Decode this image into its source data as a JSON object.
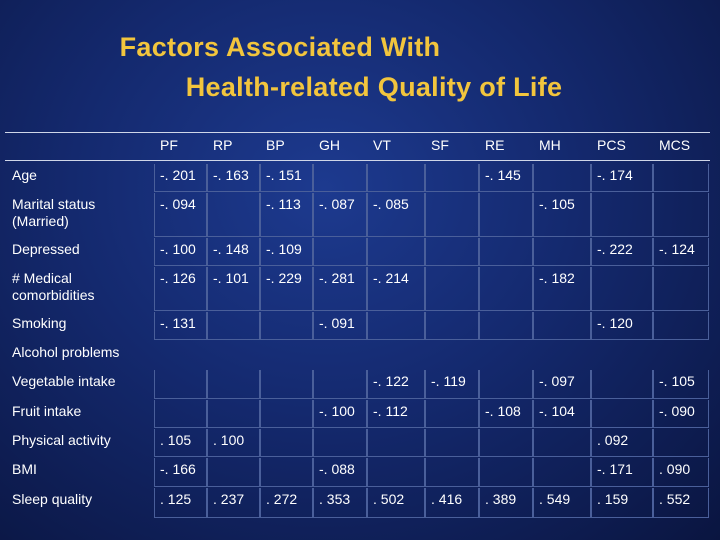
{
  "title": {
    "line1": "Factors Associated With",
    "line2": "Health-related Quality of Life"
  },
  "headers": [
    "PF",
    "RP",
    "BP",
    "GH",
    "VT",
    "SF",
    "RE",
    "MH",
    "PCS",
    "MCS"
  ],
  "rows": [
    {
      "label": "Age",
      "cells": [
        "-. 201",
        "-. 163",
        "-. 151",
        "",
        "",
        "",
        "-. 145",
        "",
        "-. 174",
        ""
      ]
    },
    {
      "label": "Marital status\n(Married)",
      "cells": [
        "-. 094",
        "",
        "-. 113",
        "-. 087",
        "-. 085",
        "",
        "",
        "-. 105",
        "",
        ""
      ]
    },
    {
      "label": "Depressed",
      "cells": [
        "-. 100",
        "-. 148",
        "-. 109",
        "",
        "",
        "",
        "",
        "",
        "-. 222",
        "-. 124"
      ]
    },
    {
      "label": "# Medical\ncomorbidities",
      "cells": [
        "-. 126",
        "-. 101",
        "-. 229",
        "-. 281",
        "-. 214",
        "",
        "",
        "-. 182",
        "",
        ""
      ]
    },
    {
      "label": "Smoking",
      "cells": [
        "-. 131",
        "",
        "",
        "-. 091",
        "",
        "",
        "",
        "",
        "-. 120",
        ""
      ]
    },
    {
      "label": "Alcohol problems",
      "cells": [
        "",
        "",
        "",
        "",
        "",
        "",
        "",
        "",
        "",
        ""
      ]
    },
    {
      "label": "Vegetable intake",
      "cells": [
        "",
        "",
        "",
        "",
        "-. 122",
        "-. 119",
        "",
        "-. 097",
        "",
        "-. 105"
      ]
    },
    {
      "label": "Fruit intake",
      "cells": [
        "",
        "",
        "",
        "-. 100",
        "-. 112",
        "",
        "-. 108",
        "-. 104",
        "",
        "-. 090"
      ]
    },
    {
      "label": "Physical activity",
      "cells": [
        ". 105",
        ". 100",
        "",
        "",
        "",
        "",
        "",
        "",
        ". 092",
        ""
      ]
    },
    {
      "label": "BMI",
      "cells": [
        "-. 166",
        "",
        "",
        "-. 088",
        "",
        "",
        "",
        "",
        "-. 171",
        ". 090"
      ]
    },
    {
      "label": "Sleep quality",
      "cells": [
        ". 125",
        ". 237",
        ". 272",
        ". 353",
        ". 502",
        ". 416",
        ". 389",
        ". 549",
        ". 159",
        ". 552"
      ]
    }
  ]
}
